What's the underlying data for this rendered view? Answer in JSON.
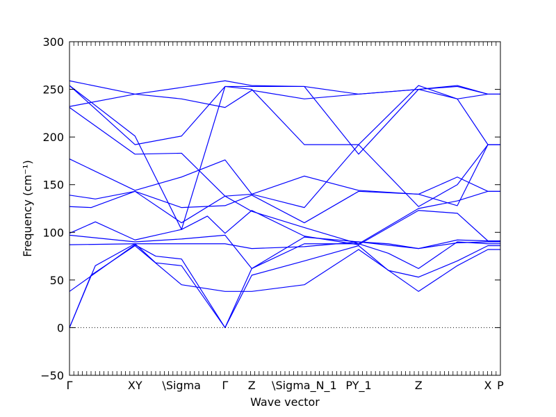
{
  "chart_data": {
    "type": "line",
    "xlabel": "Wave vector",
    "ylabel": "Frequency (cm⁻¹)",
    "ylim": [
      -50,
      300
    ],
    "yticks": [
      -50,
      0,
      50,
      100,
      150,
      200,
      250,
      300
    ],
    "ytick_labels": [
      "−50",
      "0",
      "50",
      "100",
      "150",
      "200",
      "250",
      "300"
    ],
    "xlim": [
      0,
      1
    ],
    "grid": false,
    "zero_reference_line": 0,
    "colors": {
      "bands": "#0000ff",
      "axes": "#000000"
    },
    "high_symmetry_points": [
      {
        "label": "Γ",
        "x": 0.0
      },
      {
        "label": "XY",
        "x": 0.152
      },
      {
        "label": "\\Sigma",
        "x": 0.26
      },
      {
        "label": "Γ",
        "x": 0.361
      },
      {
        "label": "Z",
        "x": 0.423
      },
      {
        "label": "\\Sigma_N_1",
        "x": 0.545
      },
      {
        "label": "PY_1",
        "x": 0.671
      },
      {
        "label": "Z",
        "x": 0.81
      },
      {
        "label": "X",
        "x": 0.971
      },
      {
        "label": "P",
        "x": 1.0
      }
    ],
    "series": [
      {
        "x": [
          0,
          0.05,
          0.152,
          0.26,
          0.361,
          0.423,
          0.545,
          0.671,
          0.81,
          0.9,
          0.971,
          1.0
        ],
        "y": [
          0,
          55,
          86,
          45,
          38,
          38,
          45,
          82,
          38,
          65,
          82,
          82
        ]
      },
      {
        "x": [
          0,
          0.06,
          0.152,
          0.2,
          0.26,
          0.361,
          0.423,
          0.545,
          0.671,
          0.74,
          0.81,
          0.9,
          0.971,
          1.0
        ],
        "y": [
          0,
          65,
          88,
          68,
          65,
          0,
          55,
          70,
          86,
          60,
          53,
          70,
          86,
          86
        ]
      },
      {
        "x": [
          0,
          0.152,
          0.2,
          0.26,
          0.361,
          0.423,
          0.545,
          0.671,
          0.74,
          0.81,
          0.9,
          0.971,
          1.0
        ],
        "y": [
          38,
          87,
          75,
          72,
          0,
          62,
          88,
          88,
          78,
          62,
          90,
          88,
          88
        ]
      },
      {
        "x": [
          0,
          0.152,
          0.26,
          0.361,
          0.423,
          0.545,
          0.671,
          0.74,
          0.81,
          0.9,
          0.971,
          1.0
        ],
        "y": [
          87,
          88,
          88,
          88,
          83,
          85,
          90,
          88,
          83,
          89,
          90,
          90
        ]
      },
      {
        "x": [
          0,
          0.152,
          0.26,
          0.361,
          0.423,
          0.545,
          0.671,
          0.81,
          0.9,
          0.971,
          1.0
        ],
        "y": [
          97,
          90,
          93,
          97,
          62,
          95,
          90,
          83,
          92,
          91,
          91
        ]
      },
      {
        "x": [
          0,
          0.06,
          0.152,
          0.26,
          0.32,
          0.361,
          0.423,
          0.545,
          0.671,
          0.81,
          0.9,
          0.971,
          1.0
        ],
        "y": [
          99,
          111,
          92,
          103,
          117,
          99,
          123,
          96,
          87,
          123,
          120,
          91,
          91
        ]
      },
      {
        "x": [
          0,
          0.05,
          0.152,
          0.26,
          0.361,
          0.423,
          0.545,
          0.671,
          0.81,
          0.9,
          0.971,
          1.0
        ],
        "y": [
          127,
          126,
          143,
          110,
          138,
          122,
          105,
          88,
          125,
          133,
          143,
          143
        ]
      },
      {
        "x": [
          0,
          0.06,
          0.152,
          0.26,
          0.361,
          0.423,
          0.545,
          0.671,
          0.81,
          0.9,
          0.971,
          1.0
        ],
        "y": [
          139,
          135,
          143,
          126,
          128,
          139,
          110,
          143,
          140,
          158,
          143,
          143
        ]
      },
      {
        "x": [
          0,
          0.152,
          0.26,
          0.361,
          0.423,
          0.545,
          0.671,
          0.81,
          0.9,
          0.971,
          1.0
        ],
        "y": [
          177,
          144,
          158,
          176,
          140,
          159,
          144,
          140,
          128,
          192,
          192
        ]
      },
      {
        "x": [
          0,
          0.152,
          0.26,
          0.361,
          0.423,
          0.545,
          0.671,
          0.81,
          0.9,
          0.971,
          1.0
        ],
        "y": [
          231,
          182,
          183,
          138,
          140,
          126,
          192,
          127,
          150,
          192,
          192
        ]
      },
      {
        "x": [
          0,
          0.152,
          0.26,
          0.361,
          0.423,
          0.545,
          0.671,
          0.81,
          0.9,
          0.971,
          1.0
        ],
        "y": [
          254,
          192,
          201,
          253,
          250,
          192,
          192,
          254,
          240,
          192,
          192
        ]
      },
      {
        "x": [
          0,
          0.152,
          0.26,
          0.361,
          0.423,
          0.545,
          0.671,
          0.81,
          0.9,
          0.971,
          1.0
        ],
        "y": [
          254,
          201,
          103,
          253,
          253,
          253,
          182,
          250,
          254,
          245,
          245
        ]
      },
      {
        "x": [
          0,
          0.152,
          0.26,
          0.361,
          0.423,
          0.545,
          0.671,
          0.81,
          0.9,
          0.971,
          1.0
        ],
        "y": [
          259,
          245,
          240,
          231,
          249,
          240,
          245,
          250,
          253,
          245,
          245
        ]
      },
      {
        "x": [
          0,
          0.152,
          0.26,
          0.361,
          0.423,
          0.545,
          0.671,
          0.81,
          0.9,
          0.971,
          1.0
        ],
        "y": [
          232,
          245,
          252,
          259,
          254,
          253,
          245,
          250,
          240,
          245,
          245
        ]
      }
    ]
  }
}
